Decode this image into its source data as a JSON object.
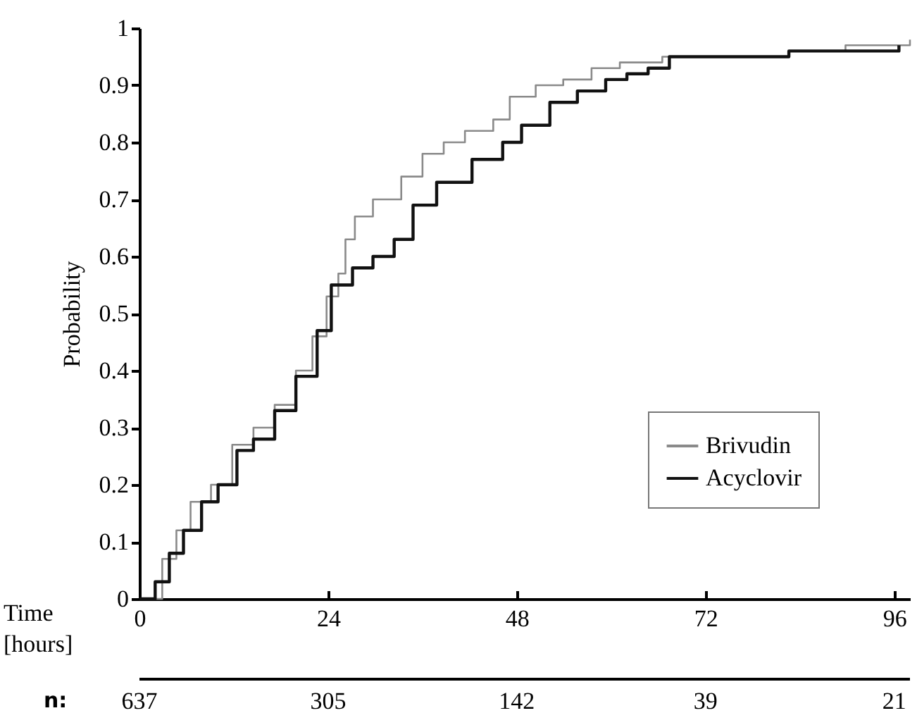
{
  "chart_data": {
    "type": "step",
    "xlabel": "Time [hours]",
    "ylabel": "Probability",
    "xlim": [
      0,
      98
    ],
    "ylim": [
      0,
      1
    ],
    "xticks": [
      0,
      24,
      48,
      72,
      96
    ],
    "yticks": [
      0,
      0.1,
      0.2,
      0.3,
      0.4,
      0.5,
      0.6,
      0.7,
      0.8,
      0.9,
      1
    ],
    "legend": "bottom right",
    "series": [
      {
        "name": "Brivudin",
        "color": "#8a8a8a",
        "x": [
          0,
          1,
          2.9,
          4.7,
          6.5,
          9.1,
          11.8,
          14.5,
          17.2,
          19.9,
          22,
          23.8,
          25.3,
          26.2,
          27.4,
          29.7,
          33.3,
          36,
          38.7,
          41.4,
          45,
          47.1,
          50.4,
          53.9,
          57.5,
          61.1,
          66.5,
          73.7,
          82.6,
          89.8,
          95.2,
          98
        ],
        "values": [
          0,
          0,
          0.07,
          0.12,
          0.17,
          0.2,
          0.27,
          0.3,
          0.34,
          0.4,
          0.46,
          0.53,
          0.57,
          0.63,
          0.67,
          0.7,
          0.74,
          0.78,
          0.8,
          0.82,
          0.84,
          0.88,
          0.9,
          0.91,
          0.93,
          0.94,
          0.95,
          0.95,
          0.96,
          0.97,
          0.97,
          0.98
        ]
      },
      {
        "name": "Acyclovir",
        "color": "#111111",
        "x": [
          0,
          2,
          3.8,
          5.6,
          7.9,
          10,
          12.4,
          14.5,
          17.2,
          19.9,
          22.6,
          24.4,
          27.1,
          29.7,
          32.4,
          34.8,
          37.8,
          42.3,
          46.2,
          48.6,
          52.2,
          55.7,
          59.3,
          62,
          64.7,
          67.4,
          73.7,
          82.6,
          89.8,
          96.6
        ],
        "values": [
          0,
          0.03,
          0.08,
          0.12,
          0.17,
          0.2,
          0.26,
          0.28,
          0.33,
          0.39,
          0.47,
          0.55,
          0.58,
          0.6,
          0.63,
          0.69,
          0.73,
          0.77,
          0.8,
          0.83,
          0.87,
          0.89,
          0.91,
          0.92,
          0.93,
          0.95,
          0.95,
          0.96,
          0.96,
          0.97
        ]
      }
    ],
    "annotations": [
      "n:",
      "637",
      "305",
      "142",
      "39",
      "21"
    ]
  }
}
